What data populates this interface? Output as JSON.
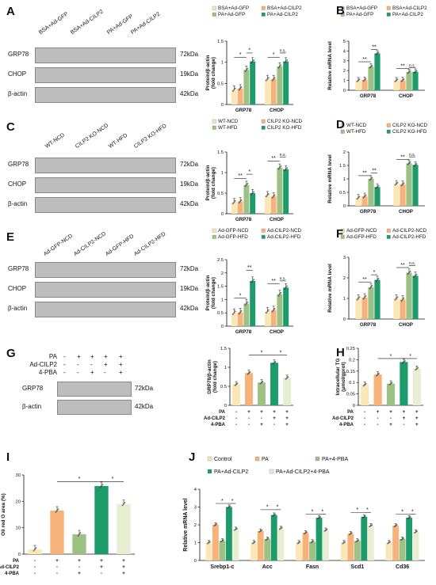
{
  "colors": {
    "c1": "#fbe7b6",
    "c2": "#f7b27a",
    "c3": "#9dc183",
    "c4": "#1e9b6b",
    "c5": "#e8eed2",
    "gray": "#555555"
  },
  "common": {
    "kda": {
      "grp78": "72kDa",
      "chop": "19kDa",
      "bactin": "42kDa"
    },
    "proteins": {
      "grp78": "GRP78",
      "chop": "CHOP",
      "bactin": "β-actin"
    },
    "protein_axis": "Protein/β-actin\n(fold change)",
    "mrna_axis": "Relative mRNA level",
    "sig1": "*",
    "sig2": "**",
    "ns": "n.s."
  },
  "panels": {
    "A": {
      "letter": "A",
      "lanes": [
        "BSA+Ad-GFP",
        "BSA+Ad-CILP2",
        "PA+Ad-GFP",
        "PA+Ad-CILP2"
      ],
      "legend": [
        "BSA+Ad-GFP",
        "BSA+Ad-CILP2",
        "PA+Ad-GFP",
        "PA+Ad-CILP2"
      ]
    },
    "B": {
      "letter": "B",
      "legend": [
        "BSA+Ad-GFP",
        "BSA+Ad-CILP2",
        "PA+Ad-GFP",
        "PA+Ad-CILP2"
      ]
    },
    "C": {
      "letter": "C",
      "lanes": [
        "WT-NCD",
        "CILP2 KO-NCD",
        "WT-HFD",
        "CILP2 KO-HFD"
      ],
      "legend": [
        "WT-NCD",
        "CILP2 KO-NCD",
        "WT-HFD",
        "CILP2 KO-HFD"
      ]
    },
    "D": {
      "letter": "D",
      "legend": [
        "WT-NCD",
        "CILP2 KO-NCD",
        "WT-HFD",
        "CILP2 KO-HFD"
      ]
    },
    "E": {
      "letter": "E",
      "lanes": [
        "Ad-GFP-NCD",
        "Ad-CILP2-NCD",
        "Ad-GFP-HFD",
        "Ad-CILP2-HFD"
      ],
      "legend": [
        "Ad-GFP-NCD",
        "Ad-CILP2-NCD",
        "Ad-GFP-HFD",
        "Ad-CILP2-HFD"
      ]
    },
    "F": {
      "letter": "F",
      "legend": [
        "Ad-GFP-NCD",
        "Ad-CILP2-NCD",
        "Ad-GFP-HFD",
        "Ad-CILP2-HFD"
      ]
    },
    "G": {
      "letter": "G",
      "treat_rows": [
        "PA",
        "Ad-CILP2",
        "4-PBA"
      ],
      "treat_signs": [
        [
          "-",
          "+",
          "+",
          "+",
          "+"
        ],
        [
          "-",
          "-",
          "-",
          "+",
          "+"
        ],
        [
          "-",
          "-",
          "+",
          "-",
          "+"
        ]
      ],
      "ylabel": "GRP78/β-actin\n(fold change)"
    },
    "H": {
      "letter": "H",
      "ylabel": "Intracellular TG\n(μmol/gprot)"
    },
    "I": {
      "letter": "I",
      "ylabel": "Oil red O area (%)"
    },
    "J": {
      "letter": "J",
      "legend": [
        "Control",
        "PA",
        "PA+4-PBA",
        "PA+Ad-CILP2",
        "PA+Ad-CILP2+4-PBA"
      ]
    }
  },
  "chart_data": [
    {
      "id": "A-protein",
      "type": "bar",
      "categories": [
        "GRP78",
        "CHOP"
      ],
      "series": [
        {
          "name": "BSA+Ad-GFP",
          "values": [
            0.35,
            0.6
          ]
        },
        {
          "name": "BSA+Ad-CILP2",
          "values": [
            0.38,
            0.6
          ]
        },
        {
          "name": "PA+Ad-GFP",
          "values": [
            0.82,
            0.9
          ]
        },
        {
          "name": "PA+Ad-CILP2",
          "values": [
            1.02,
            1.02
          ]
        }
      ],
      "ylim": [
        0,
        1.5
      ],
      "yticks": [
        0,
        0.5,
        1.0,
        1.5
      ],
      "sig": [
        {
          "g": 0,
          "a": 0,
          "b": 2,
          "label": "*",
          "y": 1.12
        },
        {
          "g": 0,
          "a": 2,
          "b": 3,
          "label": "*",
          "y": 1.22
        },
        {
          "g": 1,
          "a": 0,
          "b": 2,
          "label": "*",
          "y": 1.12
        },
        {
          "g": 1,
          "a": 2,
          "b": 3,
          "label": "n.s.",
          "y": 1.22
        }
      ]
    },
    {
      "id": "B-mrna",
      "type": "bar",
      "categories": [
        "GRP78",
        "CHOP"
      ],
      "series": [
        {
          "name": "BSA+Ad-GFP",
          "values": [
            1.0,
            1.0
          ]
        },
        {
          "name": "BSA+Ad-CILP2",
          "values": [
            1.05,
            1.02
          ]
        },
        {
          "name": "PA+Ad-GFP",
          "values": [
            2.4,
            1.85
          ]
        },
        {
          "name": "PA+Ad-CILP2",
          "values": [
            3.75,
            1.88
          ]
        }
      ],
      "ylim": [
        0,
        5
      ],
      "yticks": [
        0,
        1,
        2,
        3,
        4,
        5
      ],
      "sig": [
        {
          "g": 0,
          "a": 0,
          "b": 2,
          "label": "**",
          "y": 2.9
        },
        {
          "g": 0,
          "a": 2,
          "b": 3,
          "label": "**",
          "y": 4.15
        },
        {
          "g": 1,
          "a": 0,
          "b": 2,
          "label": "**",
          "y": 2.2
        },
        {
          "g": 1,
          "a": 2,
          "b": 3,
          "label": "n.s.",
          "y": 2.3
        }
      ]
    },
    {
      "id": "C-protein",
      "type": "bar",
      "categories": [
        "GRP78",
        "CHOP"
      ],
      "series": [
        {
          "name": "WT-NCD",
          "values": [
            0.28,
            0.45
          ]
        },
        {
          "name": "CILP2 KO-NCD",
          "values": [
            0.3,
            0.42
          ]
        },
        {
          "name": "WT-HFD",
          "values": [
            0.7,
            1.12
          ]
        },
        {
          "name": "CILP2 KO-HFD",
          "values": [
            0.5,
            1.08
          ]
        }
      ],
      "ylim": [
        0,
        1.5
      ],
      "yticks": [
        0,
        0.5,
        1.0,
        1.5
      ],
      "sig": [
        {
          "g": 0,
          "a": 0,
          "b": 2,
          "label": "**",
          "y": 0.86
        },
        {
          "g": 0,
          "a": 2,
          "b": 3,
          "label": "*",
          "y": 0.96
        },
        {
          "g": 1,
          "a": 0,
          "b": 2,
          "label": "**",
          "y": 1.28
        },
        {
          "g": 1,
          "a": 2,
          "b": 3,
          "label": "n.s.",
          "y": 1.38
        }
      ]
    },
    {
      "id": "D-mrna",
      "type": "bar",
      "categories": [
        "GRP78",
        "CHOP"
      ],
      "series": [
        {
          "name": "WT-NCD",
          "values": [
            0.3,
            0.82
          ]
        },
        {
          "name": "CILP2 KO-NCD",
          "values": [
            0.35,
            0.8
          ]
        },
        {
          "name": "WT-HFD",
          "values": [
            1.0,
            1.58
          ]
        },
        {
          "name": "CILP2 KO-HFD",
          "values": [
            0.7,
            1.52
          ]
        }
      ],
      "ylim": [
        0,
        2.0
      ],
      "yticks": [
        0,
        0.5,
        1.0,
        1.5,
        2.0
      ],
      "sig": [
        {
          "g": 0,
          "a": 0,
          "b": 2,
          "label": "**",
          "y": 1.12
        },
        {
          "g": 0,
          "a": 2,
          "b": 3,
          "label": "**",
          "y": 1.22
        },
        {
          "g": 1,
          "a": 0,
          "b": 2,
          "label": "**",
          "y": 1.72
        },
        {
          "g": 1,
          "a": 2,
          "b": 3,
          "label": "n.s.",
          "y": 1.82
        }
      ]
    },
    {
      "id": "E-protein",
      "type": "bar",
      "categories": [
        "GRP78",
        "CHOP"
      ],
      "series": [
        {
          "name": "Ad-GFP-NCD",
          "values": [
            0.5,
            0.55
          ]
        },
        {
          "name": "Ad-CILP2-NCD",
          "values": [
            0.52,
            0.6
          ]
        },
        {
          "name": "Ad-GFP-HFD",
          "values": [
            0.85,
            1.2
          ]
        },
        {
          "name": "Ad-CILP2-HFD",
          "values": [
            1.7,
            1.45
          ]
        }
      ],
      "ylim": [
        0,
        2.5
      ],
      "yticks": [
        0,
        0.5,
        1.0,
        1.5,
        2.0,
        2.5
      ],
      "sig": [
        {
          "g": 0,
          "a": 0,
          "b": 2,
          "label": "*",
          "y": 1.05
        },
        {
          "g": 0,
          "a": 2,
          "b": 3,
          "label": "**",
          "y": 2.1
        },
        {
          "g": 1,
          "a": 0,
          "b": 2,
          "label": "**",
          "y": 1.6
        },
        {
          "g": 1,
          "a": 2,
          "b": 3,
          "label": "n.s.",
          "y": 1.7
        }
      ]
    },
    {
      "id": "F-mrna",
      "type": "bar",
      "categories": [
        "GRP78",
        "CHOP"
      ],
      "series": [
        {
          "name": "Ad-GFP-NCD",
          "values": [
            1.0,
            1.0
          ]
        },
        {
          "name": "Ad-CILP2-NCD",
          "values": [
            1.05,
            0.95
          ]
        },
        {
          "name": "Ad-GFP-HFD",
          "values": [
            1.55,
            2.25
          ]
        },
        {
          "name": "Ad-CILP2-HFD",
          "values": [
            1.9,
            2.1
          ]
        }
      ],
      "ylim": [
        0,
        3
      ],
      "yticks": [
        0,
        1,
        2,
        3
      ],
      "sig": [
        {
          "g": 0,
          "a": 0,
          "b": 2,
          "label": "**",
          "y": 1.8
        },
        {
          "g": 0,
          "a": 2,
          "b": 3,
          "label": "*",
          "y": 2.15
        },
        {
          "g": 1,
          "a": 0,
          "b": 2,
          "label": "**",
          "y": 2.5
        },
        {
          "g": 1,
          "a": 2,
          "b": 3,
          "label": "n.s.",
          "y": 2.6
        }
      ]
    },
    {
      "id": "G-grp78",
      "type": "bar",
      "categories": [
        "1",
        "2",
        "3",
        "4",
        "5"
      ],
      "values": [
        0.55,
        0.85,
        0.6,
        1.12,
        0.72
      ],
      "ylim": [
        0,
        1.5
      ],
      "yticks": [
        0,
        0.5,
        1.0,
        1.5
      ],
      "sig": [
        {
          "a": 1,
          "b": 3,
          "label": "*",
          "y": 1.32
        },
        {
          "a": 3,
          "b": 4,
          "label": "*",
          "y": 1.32
        }
      ]
    },
    {
      "id": "H-tg",
      "type": "bar",
      "categories": [
        "1",
        "2",
        "3",
        "4",
        "5"
      ],
      "values": [
        0.09,
        0.135,
        0.095,
        0.19,
        0.16
      ],
      "ylim": [
        0,
        0.25
      ],
      "yticks": [
        0,
        0.05,
        0.1,
        0.15,
        0.2,
        0.25
      ],
      "sig": [
        {
          "a": 1,
          "b": 3,
          "label": "*",
          "y": 0.205
        },
        {
          "a": 3,
          "b": 4,
          "label": "*",
          "y": 0.205
        }
      ]
    },
    {
      "id": "I-oro",
      "type": "bar",
      "categories": [
        "1",
        "2",
        "3",
        "4",
        "5"
      ],
      "values": [
        1.8,
        16.5,
        7.5,
        25.8,
        19.0
      ],
      "ylim": [
        0,
        30
      ],
      "yticks": [
        0,
        10,
        20,
        30
      ],
      "sig": [
        {
          "a": 1,
          "b": 3,
          "label": "*",
          "y": 27.5
        },
        {
          "a": 3,
          "b": 4,
          "label": "*",
          "y": 27.5
        }
      ]
    },
    {
      "id": "J-mrna",
      "type": "bar",
      "categories": [
        "Srebp1-c",
        "Acc",
        "Fasn",
        "Scd1",
        "Cd36"
      ],
      "series": [
        {
          "name": "Control",
          "values": [
            1.0,
            1.0,
            1.0,
            1.0,
            1.0
          ]
        },
        {
          "name": "PA",
          "values": [
            2.0,
            1.65,
            1.55,
            1.5,
            1.95
          ]
        },
        {
          "name": "PA+4-PBA",
          "values": [
            1.1,
            1.2,
            1.05,
            1.1,
            1.2
          ]
        },
        {
          "name": "PA+Ad-CILP2",
          "values": [
            3.0,
            2.55,
            2.4,
            2.45,
            2.4
          ]
        },
        {
          "name": "PA+Ad-CILP2+4-PBA",
          "values": [
            1.75,
            1.8,
            1.7,
            1.95,
            1.6
          ]
        }
      ],
      "ylim": [
        0,
        4
      ],
      "yticks": [
        0,
        1,
        2,
        3,
        4
      ],
      "sig": [
        {
          "g": 0,
          "a": 1,
          "b": 3,
          "label": "*",
          "y": 3.2
        },
        {
          "g": 0,
          "a": 3,
          "b": 4,
          "label": "*",
          "y": 3.2
        },
        {
          "g": 1,
          "a": 1,
          "b": 3,
          "label": "*",
          "y": 2.85
        },
        {
          "g": 1,
          "a": 3,
          "b": 4,
          "label": "*",
          "y": 2.85
        },
        {
          "g": 2,
          "a": 1,
          "b": 3,
          "label": "*",
          "y": 2.6
        },
        {
          "g": 2,
          "a": 3,
          "b": 4,
          "label": "*",
          "y": 2.6
        },
        {
          "g": 3,
          "a": 1,
          "b": 3,
          "label": "*",
          "y": 2.7
        },
        {
          "g": 3,
          "a": 3,
          "b": 4,
          "label": "*",
          "y": 2.7
        },
        {
          "g": 4,
          "a": 1,
          "b": 3,
          "label": "*",
          "y": 2.6
        },
        {
          "g": 4,
          "a": 3,
          "b": 4,
          "label": "*",
          "y": 2.6
        }
      ]
    }
  ]
}
